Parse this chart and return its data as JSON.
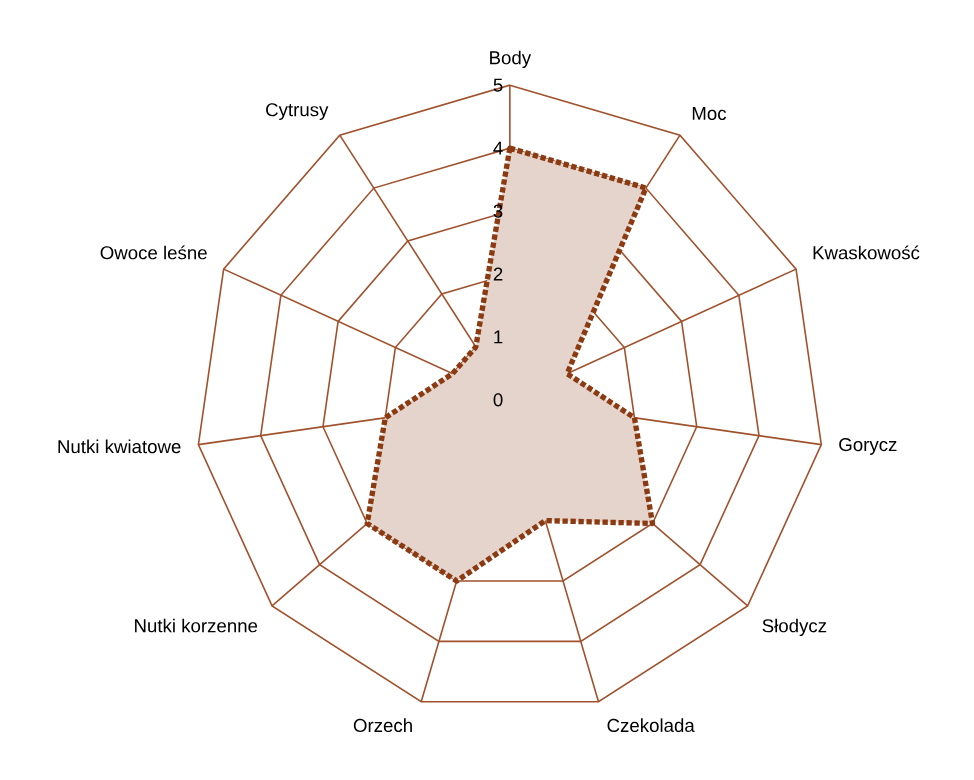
{
  "chart_data": {
    "type": "radar",
    "categories": [
      "Body",
      "Moc",
      "Kwaskowość",
      "Gorycz",
      "Słodycz",
      "Czekolada",
      "Orzech",
      "Nutki korzenne",
      "Nutki kwiatowe",
      "Owoce leśne",
      "Cytrusy"
    ],
    "series": [
      {
        "color": "#8b3a12",
        "values": [
          4,
          4,
          1,
          2,
          3,
          2,
          3,
          3,
          2,
          1,
          1
        ]
      }
    ],
    "ylim": [
      0,
      5
    ],
    "yticks": [
      0,
      1,
      2,
      3,
      4,
      5
    ],
    "grid": true,
    "line_style": "dotted"
  }
}
